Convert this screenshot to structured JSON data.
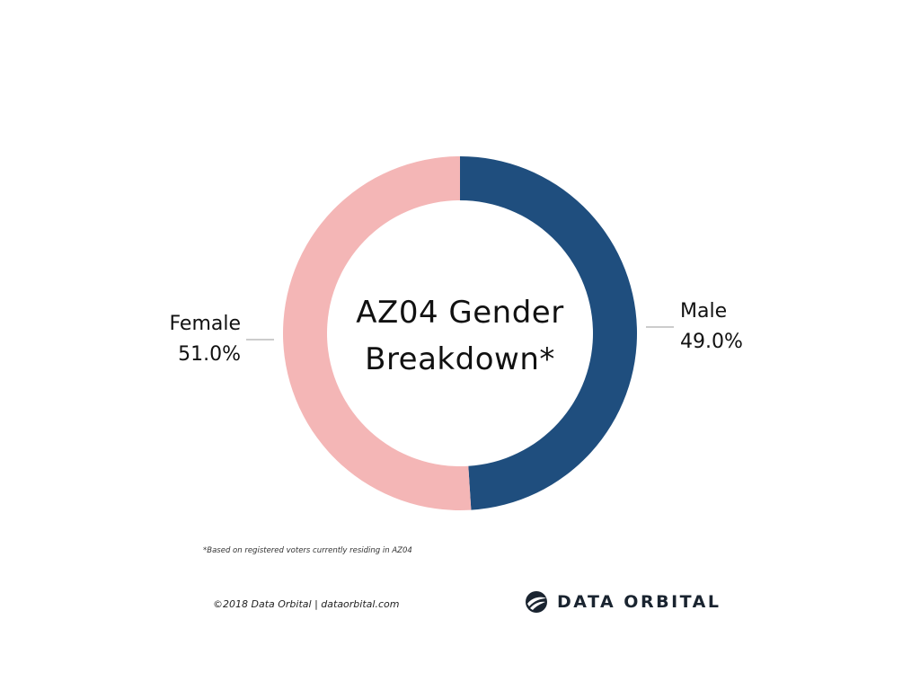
{
  "chart_data": {
    "type": "pie",
    "title": "AZ04 Gender Breakdown*",
    "title_lines": [
      "AZ04 Gender",
      "Breakdown*"
    ],
    "slices": [
      {
        "name": "Male",
        "value": 49.0,
        "label": "49.0%",
        "color": "#1f4e7e"
      },
      {
        "name": "Female",
        "value": 51.0,
        "label": "51.0%",
        "color": "#f4b6b6"
      }
    ],
    "donut": true
  },
  "footnote": "*Based on registered voters currently residing in AZ04",
  "footer": {
    "copyright": "©2018 Data Orbital | dataorbital.com"
  },
  "brand": {
    "name": "DATA ORBITAL",
    "icon": "data-orbital-logo-icon",
    "color": "#1a2430"
  }
}
